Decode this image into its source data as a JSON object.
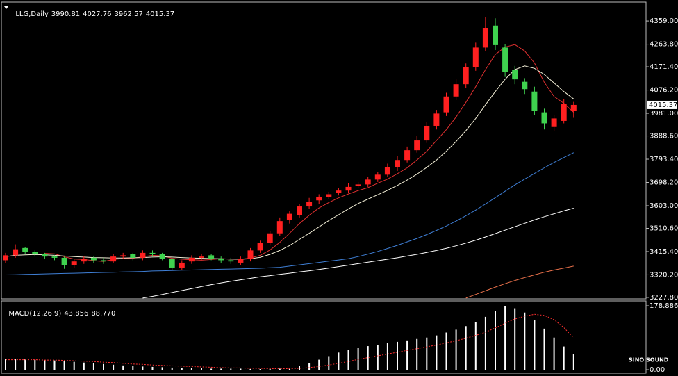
{
  "chart_data": [
    {
      "type": "candlestick",
      "title": "LLG,Daily",
      "open": [
        3380,
        3400,
        3430,
        3415,
        3405,
        3395,
        3390,
        3360,
        3375,
        3390,
        3380,
        3375,
        3395,
        3405,
        3390,
        3410,
        3405,
        3385,
        3350,
        3375,
        3390,
        3400,
        3385,
        3380,
        3370,
        3385,
        3420,
        3450,
        3490,
        3545,
        3565,
        3600,
        3625,
        3640,
        3655,
        3665,
        3685,
        3690,
        3710,
        3730,
        3760,
        3790,
        3830,
        3870,
        3930,
        3985,
        4050,
        4100,
        4170,
        4250,
        4340,
        4250,
        4160,
        4110,
        4070,
        3985,
        3925,
        3950,
        3990.81
      ],
      "high": [
        3410,
        3445,
        3435,
        3420,
        3410,
        3400,
        3395,
        3385,
        3395,
        3395,
        3390,
        3405,
        3410,
        3410,
        3420,
        3420,
        3410,
        3390,
        3380,
        3400,
        3405,
        3405,
        3395,
        3390,
        3395,
        3430,
        3460,
        3500,
        3555,
        3580,
        3610,
        3635,
        3650,
        3660,
        3675,
        3695,
        3700,
        3720,
        3740,
        3775,
        3805,
        3845,
        3890,
        3945,
        3995,
        4065,
        4120,
        4185,
        4270,
        4375,
        4370,
        4265,
        4175,
        4125,
        4090,
        4000,
        3975,
        4040,
        4027.76
      ],
      "low": [
        3370,
        3390,
        3405,
        3395,
        3385,
        3380,
        3345,
        3350,
        3365,
        3370,
        3365,
        3370,
        3385,
        3380,
        3380,
        3395,
        3380,
        3340,
        3340,
        3365,
        3380,
        3380,
        3370,
        3365,
        3360,
        3375,
        3410,
        3440,
        3480,
        3530,
        3555,
        3590,
        3610,
        3630,
        3645,
        3655,
        3675,
        3680,
        3700,
        3720,
        3745,
        3780,
        3820,
        3860,
        3915,
        3970,
        4035,
        4085,
        4155,
        4235,
        4240,
        4130,
        4100,
        4060,
        3975,
        3915,
        3910,
        3940,
        3962.57
      ],
      "close": [
        3400,
        3425,
        3415,
        3405,
        3395,
        3390,
        3360,
        3375,
        3385,
        3380,
        3375,
        3395,
        3400,
        3390,
        3410,
        3405,
        3385,
        3350,
        3370,
        3390,
        3395,
        3385,
        3380,
        3375,
        3385,
        3420,
        3450,
        3490,
        3540,
        3570,
        3600,
        3620,
        3640,
        3650,
        3665,
        3680,
        3690,
        3710,
        3730,
        3760,
        3790,
        3830,
        3870,
        3930,
        3980,
        4050,
        4100,
        4170,
        4250,
        4330,
        4260,
        4150,
        4120,
        4080,
        3990,
        3940,
        3960,
        4020,
        4015.37
      ],
      "up_color": "#ff2020",
      "down_color": "#3fd24f",
      "moving_averages": [
        {
          "color": "#e03030",
          "values": [
            null,
            null,
            null,
            null,
            3408,
            3406,
            3394,
            3385,
            3383,
            3378,
            3375,
            3383,
            3387,
            3388,
            3394,
            3400,
            3398,
            3388,
            3384,
            3382,
            3380,
            3383,
            3386,
            3385,
            3384,
            3389,
            3400,
            3422,
            3453,
            3490,
            3530,
            3564,
            3594,
            3616,
            3635,
            3651,
            3665,
            3677,
            3695,
            3712,
            3734,
            3758,
            3790,
            3826,
            3870,
            3914,
            3966,
            4026,
            4090,
            4160,
            4222,
            4252,
            4262,
            4236,
            4187,
            4108,
            4050,
            4022,
            3985
          ]
        },
        {
          "color": "#f4f0d8",
          "values": [
            3395,
            3400,
            3402,
            3403,
            3402,
            3400,
            3397,
            3395,
            3393,
            3391,
            3390,
            3389,
            3389,
            3390,
            3391,
            3393,
            3394,
            3393,
            3391,
            3389,
            3388,
            3387,
            3386,
            3385,
            3384,
            3386,
            3392,
            3404,
            3420,
            3440,
            3465,
            3490,
            3516,
            3542,
            3566,
            3590,
            3612,
            3630,
            3648,
            3666,
            3686,
            3708,
            3732,
            3760,
            3790,
            3826,
            3866,
            3910,
            3960,
            4016,
            4070,
            4120,
            4160,
            4175,
            4165,
            4140,
            4105,
            4070,
            4040
          ]
        },
        {
          "color": "#3f7fd6",
          "values": [
            3320,
            3321,
            3322,
            3323,
            3324,
            3325,
            3326,
            3327,
            3328,
            3329,
            3330,
            3331,
            3332,
            3333,
            3334,
            3336,
            3337,
            3338,
            3339,
            3340,
            3341,
            3342,
            3343,
            3344,
            3345,
            3346,
            3347,
            3349,
            3351,
            3356,
            3361,
            3366,
            3371,
            3376,
            3381,
            3386,
            3395,
            3405,
            3416,
            3428,
            3441,
            3455,
            3469,
            3485,
            3502,
            3520,
            3540,
            3562,
            3585,
            3610,
            3636,
            3662,
            3688,
            3712,
            3735,
            3758,
            3780,
            3800,
            3820
          ]
        },
        {
          "color": "#ffffff",
          "values": [
            null,
            null,
            null,
            null,
            null,
            null,
            null,
            null,
            null,
            null,
            null,
            null,
            null,
            null,
            3225,
            3232,
            3240,
            3248,
            3256,
            3264,
            3272,
            3280,
            3287,
            3294,
            3300,
            3306,
            3312,
            3317,
            3322,
            3327,
            3332,
            3337,
            3342,
            3348,
            3354,
            3360,
            3366,
            3372,
            3378,
            3384,
            3390,
            3397,
            3404,
            3412,
            3420,
            3429,
            3439,
            3450,
            3462,
            3475,
            3489,
            3503,
            3517,
            3531,
            3545,
            3558,
            3570,
            3582,
            3593
          ]
        },
        {
          "color": "#e8704a",
          "values": [
            null,
            null,
            null,
            null,
            null,
            null,
            null,
            null,
            null,
            null,
            null,
            null,
            null,
            null,
            null,
            null,
            null,
            null,
            null,
            null,
            null,
            null,
            null,
            null,
            null,
            null,
            null,
            null,
            null,
            null,
            null,
            null,
            null,
            null,
            null,
            null,
            null,
            null,
            null,
            null,
            null,
            null,
            null,
            null,
            null,
            null,
            null,
            3225,
            3240,
            3255,
            3270,
            3284,
            3297,
            3309,
            3320,
            3331,
            3340,
            3348,
            3356
          ]
        }
      ],
      "ylim": [
        3222,
        4436
      ],
      "yticks": [
        {
          "value": 4359,
          "label": "4359.00"
        },
        {
          "value": 4263.8,
          "label": "4263.80"
        },
        {
          "value": 4171.4,
          "label": "4171.40"
        },
        {
          "value": 4076.2,
          "label": "4076.20"
        },
        {
          "value": 3981,
          "label": "3981.00"
        },
        {
          "value": 3888.6,
          "label": "3888.60"
        },
        {
          "value": 3793.4,
          "label": "3793.40"
        },
        {
          "value": 3698.2,
          "label": "3698.20"
        },
        {
          "value": 3603,
          "label": "3603.00"
        },
        {
          "value": 3510.6,
          "label": "3510.60"
        },
        {
          "value": 3415.4,
          "label": "3415.40"
        },
        {
          "value": 3320.2,
          "label": "3320.20"
        },
        {
          "value": 3227.8,
          "label": "3227.80"
        }
      ]
    },
    {
      "type": "macd",
      "title": "MACD(12,26,9)",
      "series": [
        {
          "color": "#ffffff",
          "values": [
            30,
            30,
            29,
            28,
            27,
            26,
            24,
            22,
            20,
            18,
            16,
            14,
            12,
            10,
            9,
            8,
            7,
            6,
            5,
            4,
            4,
            3,
            3,
            3,
            3,
            2,
            2,
            2,
            3,
            5,
            10,
            18,
            28,
            38,
            48,
            56,
            62,
            66,
            70,
            74,
            78,
            82,
            86,
            90,
            96,
            104,
            112,
            122,
            134,
            148,
            165,
            178,
            172,
            160,
            140,
            115,
            90,
            65,
            43.856
          ]
        },
        {
          "color": "#ff3030",
          "values": [
            28,
            28,
            28,
            28,
            27,
            27,
            26,
            25,
            24,
            23,
            21,
            20,
            18,
            16,
            15,
            13,
            12,
            11,
            10,
            9,
            8,
            7,
            6,
            5,
            5,
            4,
            4,
            3,
            3,
            3,
            4,
            6,
            9,
            13,
            18,
            23,
            29,
            34,
            39,
            44,
            49,
            54,
            59,
            64,
            69,
            75,
            81,
            88,
            96,
            105,
            117,
            130,
            142,
            150,
            155,
            152,
            140,
            118,
            88.77
          ],
          "value_labels": [
            null,
            null,
            null,
            null,
            null,
            null,
            null,
            null,
            null,
            null,
            null,
            null,
            null,
            null,
            null,
            null,
            null,
            null,
            null,
            null,
            null,
            null,
            null,
            null,
            null,
            null,
            null,
            null,
            null,
            null,
            null,
            null,
            null,
            null,
            null,
            null,
            null,
            null,
            null,
            null,
            null,
            null,
            null,
            null,
            null,
            null,
            null,
            null,
            null,
            null,
            null,
            null,
            null,
            null,
            null,
            null,
            null,
            null,
            "88.770"
          ]
        }
      ],
      "ylim": [
        -9.7,
        192.5
      ],
      "yticks": [
        178.886,
        {
          "value": 0,
          "label": "0.00"
        }
      ]
    }
  ],
  "watermark": "SINO SOUND"
}
